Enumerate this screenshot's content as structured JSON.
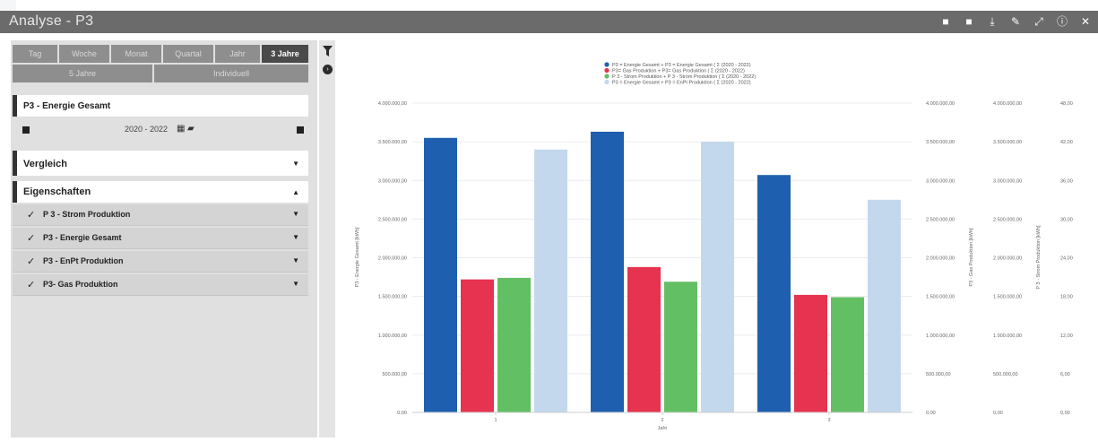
{
  "window": {
    "title": "Analyse - P3"
  },
  "titlebar_actions": [
    {
      "icon": "bookmark-icon",
      "glyph": "■"
    },
    {
      "icon": "bookmark-add-icon",
      "glyph": "■"
    },
    {
      "icon": "download-icon",
      "glyph": "⤓"
    },
    {
      "icon": "edit-icon",
      "glyph": "✎"
    },
    {
      "icon": "expand-icon",
      "glyph": "⤢"
    },
    {
      "icon": "info-icon",
      "glyph": "ⓘ"
    },
    {
      "icon": "close-icon",
      "glyph": "✕"
    }
  ],
  "periods": {
    "row1": [
      {
        "label": "Tag",
        "active": false
      },
      {
        "label": "Woche",
        "active": false
      },
      {
        "label": "Monat",
        "active": false
      },
      {
        "label": "Quartal",
        "active": false
      },
      {
        "label": "Jahr",
        "active": false
      },
      {
        "label": "3 Jahre",
        "active": true
      }
    ],
    "row2": [
      {
        "label": "5 Jahre",
        "active": false
      },
      {
        "label": "Individuell",
        "active": false
      }
    ]
  },
  "measure": {
    "title": "P3 - Energie Gesamt",
    "date_range": "2020 - 2022"
  },
  "vergleich": {
    "title": "Vergleich"
  },
  "eigenschaften": {
    "title": "Eigenschaften",
    "items": [
      "P 3 - Strom Produktion",
      "P3 - Energie Gesamt",
      "P3 - EnPt Produktion",
      "P3- Gas Produktion"
    ]
  },
  "chart_data": {
    "type": "bar",
    "categories": [
      "1",
      "2",
      "3"
    ],
    "xlabel": "Jahr",
    "legend_position": "top-center",
    "grid": true,
    "series": [
      {
        "name": "P3 = Energie Gesamt + P3 = Energie Gesamt ( Σ (2020 - 2022)",
        "color": "#1f5fb0",
        "values": [
          3550000,
          3630000,
          3070000
        ]
      },
      {
        "name": "P3= Gas Produktion + P3= Gas Produktion ( Σ (2020 - 2022)",
        "color": "#e6334f",
        "values": [
          1720000,
          1880000,
          1520000
        ]
      },
      {
        "name": "P 3 - Strom Produktion + P 3 - Strom Produktion ( Σ (2020 - 2022)",
        "color": "#63bf63",
        "values": [
          1740000,
          1690000,
          1490000
        ]
      },
      {
        "name": "P3 = Energie Gesamt + P3 = EnPt Produktion ( Σ (2020 - 2022)",
        "color": "#c3d8ec",
        "values": [
          3400000,
          3500000,
          2750000
        ]
      }
    ],
    "y_axis_left": {
      "label": "P3 - Energie Gesamt [kWh]",
      "ylim": [
        0,
        4000000
      ],
      "ticks": [
        "0,00",
        "500.000,00",
        "1.000.000,00",
        "1.500.000,00",
        "2.000.000,00",
        "2.500.000,00",
        "3.000.000,00",
        "3.500.000,00",
        "4.000.000,00"
      ]
    },
    "y_axis_right_1": {
      "label": "P3 - Gas Produktion [kWh]",
      "ticks": [
        "0,00",
        "500.000,00",
        "1.000.000,00",
        "1.500.000,00",
        "2.000.000,00",
        "2.500.000,00",
        "3.000.000,00",
        "3.500.000,00",
        "4.000.000,00"
      ]
    },
    "y_axis_right_2": {
      "label": "P 3 - Strom Produktion [kWh]",
      "ticks": [
        "0,00",
        "500.000,00",
        "1.000.000,00",
        "1.500.000,00",
        "2.000.000,00",
        "2.500.000,00",
        "3.000.000,00",
        "3.500.000,00",
        "4.000.000,00"
      ]
    },
    "y_axis_right_3": {
      "label": "P3 - EnPt Produktion [kWh]",
      "ticks": [
        "0,00",
        "6,00",
        "12,00",
        "18,00",
        "24,00",
        "30,00",
        "36,00",
        "42,00",
        "48,00"
      ]
    }
  }
}
